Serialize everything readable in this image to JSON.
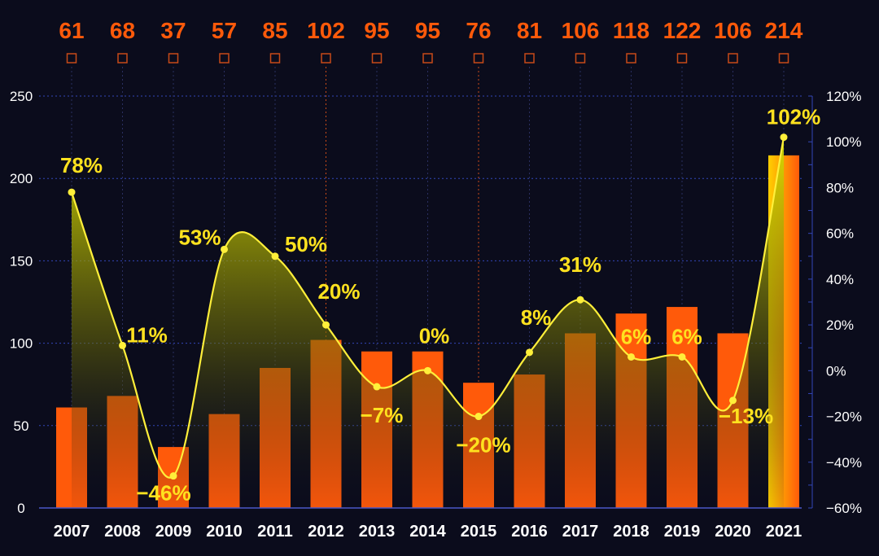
{
  "chart_data": {
    "type": "bar",
    "categories": [
      "2007",
      "2008",
      "2009",
      "2010",
      "2011",
      "2012",
      "2013",
      "2014",
      "2015",
      "2016",
      "2017",
      "2018",
      "2019",
      "2020",
      "2021"
    ],
    "series": [
      {
        "values": [
          61,
          68,
          37,
          57,
          85,
          102,
          95,
          95,
          76,
          81,
          106,
          118,
          122,
          106,
          214
        ],
        "axis": "left",
        "kind": "bar"
      },
      {
        "values": [
          78,
          11,
          -46,
          53,
          50,
          20,
          -7,
          0,
          -20,
          8,
          31,
          6,
          6,
          -13,
          102
        ],
        "axis": "right",
        "kind": "line",
        "unit": "%"
      }
    ],
    "top_labels": [
      "61",
      "68",
      "37",
      "57",
      "85",
      "102",
      "95",
      "95",
      "76",
      "81",
      "106",
      "118",
      "122",
      "106",
      "214"
    ],
    "pct_labels": [
      "78%",
      "11%",
      "−46%",
      "53%",
      "50%",
      "20%",
      "−7%",
      "0%",
      "−20%",
      "8%",
      "31%",
      "6%",
      "6%",
      "−13%",
      "102%"
    ],
    "left_axis": {
      "ylim": [
        0,
        250
      ],
      "ticks": [
        "0",
        "50",
        "100",
        "150",
        "200",
        "250"
      ]
    },
    "right_axis": {
      "ylim": [
        -60,
        120
      ],
      "ticks": [
        "−60%",
        "−40%",
        "−20%",
        "0%",
        "20%",
        "40%",
        "60%",
        "80%",
        "100%",
        "120%"
      ]
    },
    "grid": true,
    "colors": {
      "background": "#0b0c1c",
      "bar": "#ff5a0a",
      "bar_highlight": "#ffb300",
      "line": "#ffef3a",
      "top_label": "#ff5a0a",
      "pct_label": "#ffe21f",
      "grid": "#3346b8"
    }
  }
}
